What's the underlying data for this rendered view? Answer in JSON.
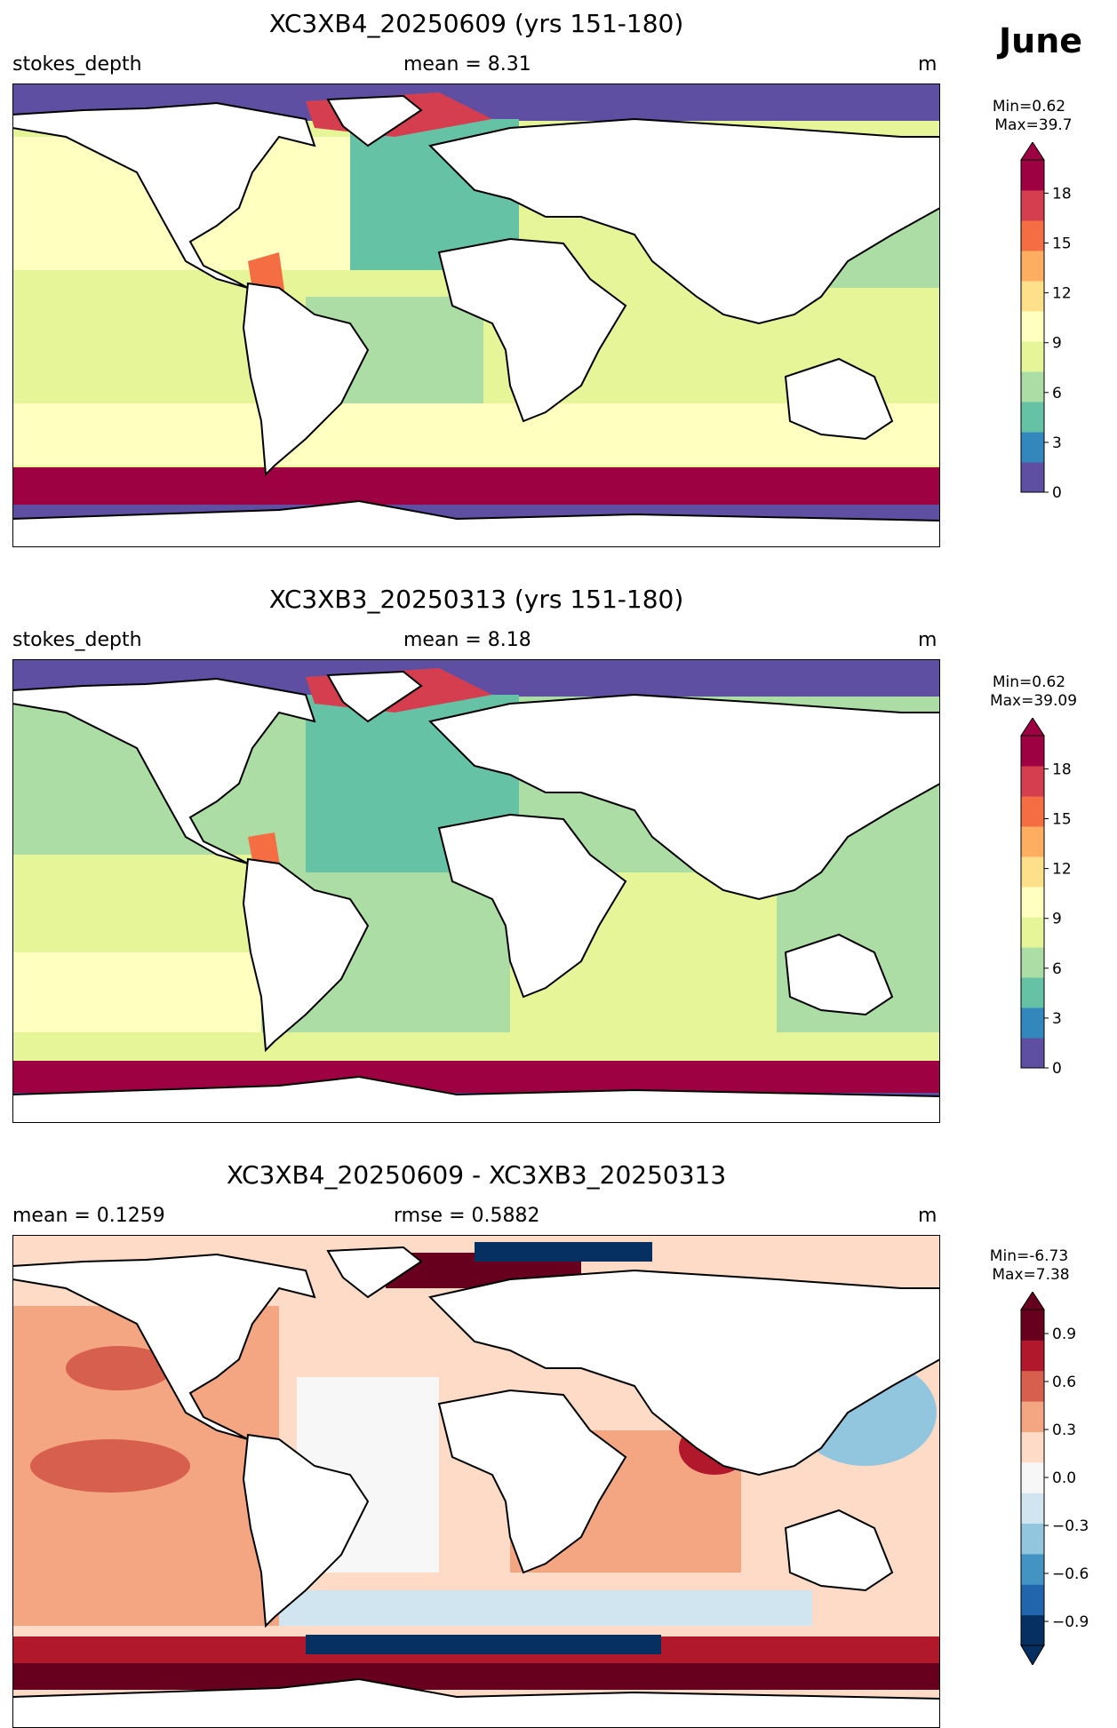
{
  "figure": {
    "month": "June",
    "colors": {
      "land": "#ffffff",
      "coast": "#000000",
      "polar_ice": "#5e4fa2",
      "southern_ocean_band": "#9e0142"
    }
  },
  "panels": [
    {
      "title": "XC3XB4_20250609 (yrs 151-180)",
      "left_label": "stokes_depth",
      "center_label": "mean = 8.31",
      "right_label": "m",
      "colorbar": {
        "min_label": "Min=0.62",
        "max_label": "Max=39.7",
        "colormap": "Spectral_r",
        "ticks": [
          "0",
          "3",
          "6",
          "9",
          "12",
          "15",
          "18"
        ],
        "range": [
          0,
          20
        ],
        "extend": "max",
        "colors": [
          "#5e4fa2",
          "#3288bd",
          "#66c2a5",
          "#abdda4",
          "#e6f598",
          "#ffffbf",
          "#fee08b",
          "#fdae61",
          "#f46d43",
          "#d53e4f",
          "#9e0142"
        ]
      }
    },
    {
      "title": "XC3XB3_20250313 (yrs 151-180)",
      "left_label": "stokes_depth",
      "center_label": "mean = 8.18",
      "right_label": "m",
      "colorbar": {
        "min_label": "Min=0.62",
        "max_label": "Max=39.09",
        "colormap": "Spectral_r",
        "ticks": [
          "0",
          "3",
          "6",
          "9",
          "12",
          "15",
          "18"
        ],
        "range": [
          0,
          20
        ],
        "extend": "max",
        "colors": [
          "#5e4fa2",
          "#3288bd",
          "#66c2a5",
          "#abdda4",
          "#e6f598",
          "#ffffbf",
          "#fee08b",
          "#fdae61",
          "#f46d43",
          "#d53e4f",
          "#9e0142"
        ]
      }
    },
    {
      "title": "XC3XB4_20250609 - XC3XB3_20250313",
      "left_label": "mean = 0.1259",
      "center_label": "rmse = 0.5882",
      "right_label": "m",
      "colorbar": {
        "min_label": "Min=-6.73",
        "max_label": "Max=7.38",
        "colormap": "RdBu_r",
        "ticks": [
          "−0.9",
          "−0.6",
          "−0.3",
          "0.0",
          "0.3",
          "0.6",
          "0.9"
        ],
        "range": [
          -1.05,
          1.05
        ],
        "extend": "both",
        "colors": [
          "#053061",
          "#2166ac",
          "#4393c3",
          "#92c5de",
          "#d1e5f0",
          "#f7f7f7",
          "#fddbc7",
          "#f4a582",
          "#d6604d",
          "#b2182b",
          "#67001f"
        ]
      }
    }
  ]
}
